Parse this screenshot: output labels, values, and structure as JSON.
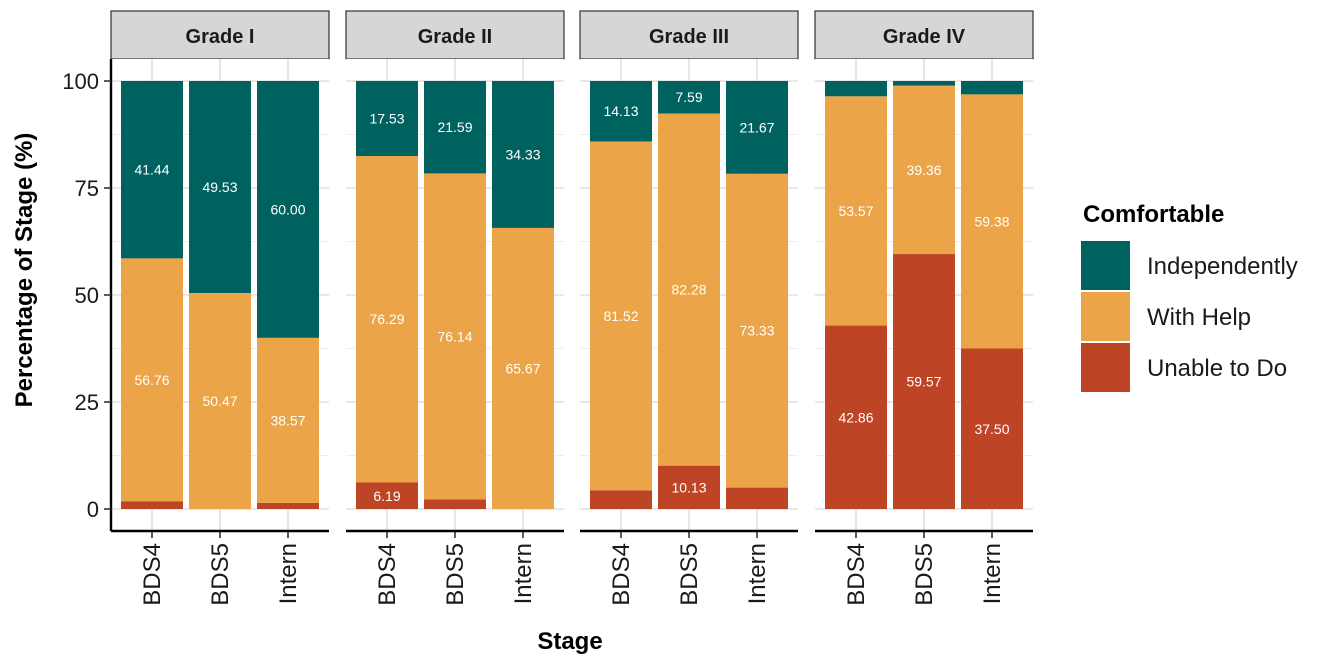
{
  "chart_data": {
    "type": "bar",
    "stacked": true,
    "xlabel": "Stage",
    "ylabel": "Percentage of Stage (%)",
    "ylim": [
      0,
      100
    ],
    "yticks": [
      0,
      25,
      50,
      75,
      100
    ],
    "grid": true,
    "categories": [
      "BDS4",
      "BDS5",
      "Intern"
    ],
    "colors": {
      "Independently": "#00625f",
      "With Help": "#eba447",
      "Unable to Do": "#bd4425",
      "strip": "#d6d6d6",
      "grid": "#e0e0e0"
    },
    "legend": {
      "title": "Comfortable",
      "position": "right",
      "entries": [
        "Independently",
        "With Help",
        "Unable to Do"
      ]
    },
    "panels": [
      {
        "label": "Grade I",
        "series": [
          {
            "name": "Unable to Do",
            "values": [
              1.8,
              0.0,
              1.43
            ],
            "labels": [
              "",
              "",
              ""
            ]
          },
          {
            "name": "With Help",
            "values": [
              56.76,
              50.47,
              38.57
            ],
            "labels": [
              "56.76",
              "50.47",
              "38.57"
            ]
          },
          {
            "name": "Independently",
            "values": [
              41.44,
              49.53,
              60.0
            ],
            "labels": [
              "41.44",
              "49.53",
              "60.00"
            ]
          }
        ]
      },
      {
        "label": "Grade II",
        "series": [
          {
            "name": "Unable to Do",
            "values": [
              6.19,
              2.27,
              0.0
            ],
            "labels": [
              "6.19",
              "",
              ""
            ]
          },
          {
            "name": "With Help",
            "values": [
              76.29,
              76.14,
              65.67
            ],
            "labels": [
              "76.29",
              "76.14",
              "65.67"
            ]
          },
          {
            "name": "Independently",
            "values": [
              17.53,
              21.59,
              34.33
            ],
            "labels": [
              "17.53",
              "21.59",
              "34.33"
            ]
          }
        ]
      },
      {
        "label": "Grade III",
        "series": [
          {
            "name": "Unable to Do",
            "values": [
              4.35,
              10.13,
              5.0
            ],
            "labels": [
              "",
              "10.13",
              ""
            ]
          },
          {
            "name": "With Help",
            "values": [
              81.52,
              82.28,
              73.33
            ],
            "labels": [
              "81.52",
              "82.28",
              "73.33"
            ]
          },
          {
            "name": "Independently",
            "values": [
              14.13,
              7.59,
              21.67
            ],
            "labels": [
              "14.13",
              "7.59",
              "21.67"
            ]
          }
        ]
      },
      {
        "label": "Grade IV",
        "series": [
          {
            "name": "Unable to Do",
            "values": [
              42.86,
              59.57,
              37.5
            ],
            "labels": [
              "42.86",
              "59.57",
              "37.50"
            ]
          },
          {
            "name": "With Help",
            "values": [
              53.57,
              39.36,
              59.38
            ],
            "labels": [
              "53.57",
              "39.36",
              "59.38"
            ]
          },
          {
            "name": "Independently",
            "values": [
              3.57,
              1.07,
              3.12
            ],
            "labels": [
              "",
              "",
              ""
            ]
          }
        ]
      }
    ]
  }
}
